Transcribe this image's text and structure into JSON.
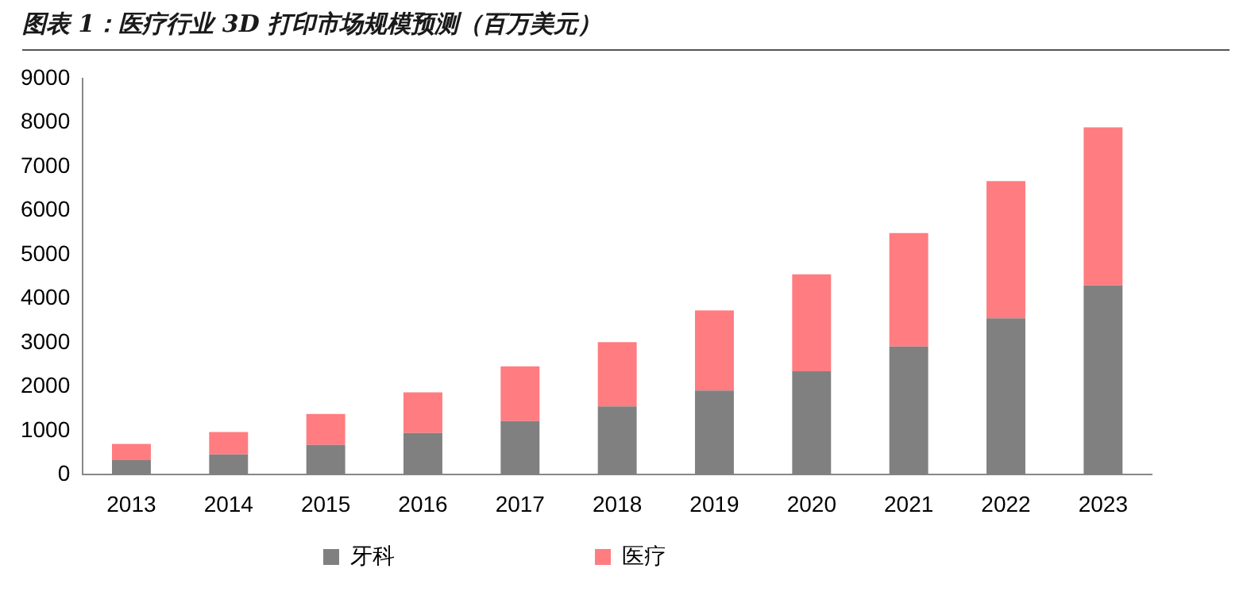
{
  "chart_data": {
    "type": "bar",
    "title": "图表 1：医疗行业 3D 打印市场规模预测（百万美元）",
    "categories": [
      "2013",
      "2014",
      "2015",
      "2016",
      "2017",
      "2018",
      "2019",
      "2020",
      "2021",
      "2022",
      "2023"
    ],
    "stacked": true,
    "series": [
      {
        "name": "牙科",
        "color": "#808080",
        "values": [
          330,
          460,
          680,
          950,
          1220,
          1550,
          1910,
          2350,
          2910,
          3550,
          4300
        ]
      },
      {
        "name": "医疗",
        "color": "#ff7c80",
        "values": [
          370,
          510,
          700,
          920,
          1240,
          1460,
          1820,
          2200,
          2580,
          3120,
          3590
        ]
      }
    ],
    "ylim": [
      0,
      9000
    ],
    "yticks": [
      0,
      1000,
      2000,
      3000,
      4000,
      5000,
      6000,
      7000,
      8000,
      9000
    ],
    "grid": false,
    "legend": "bottom"
  }
}
